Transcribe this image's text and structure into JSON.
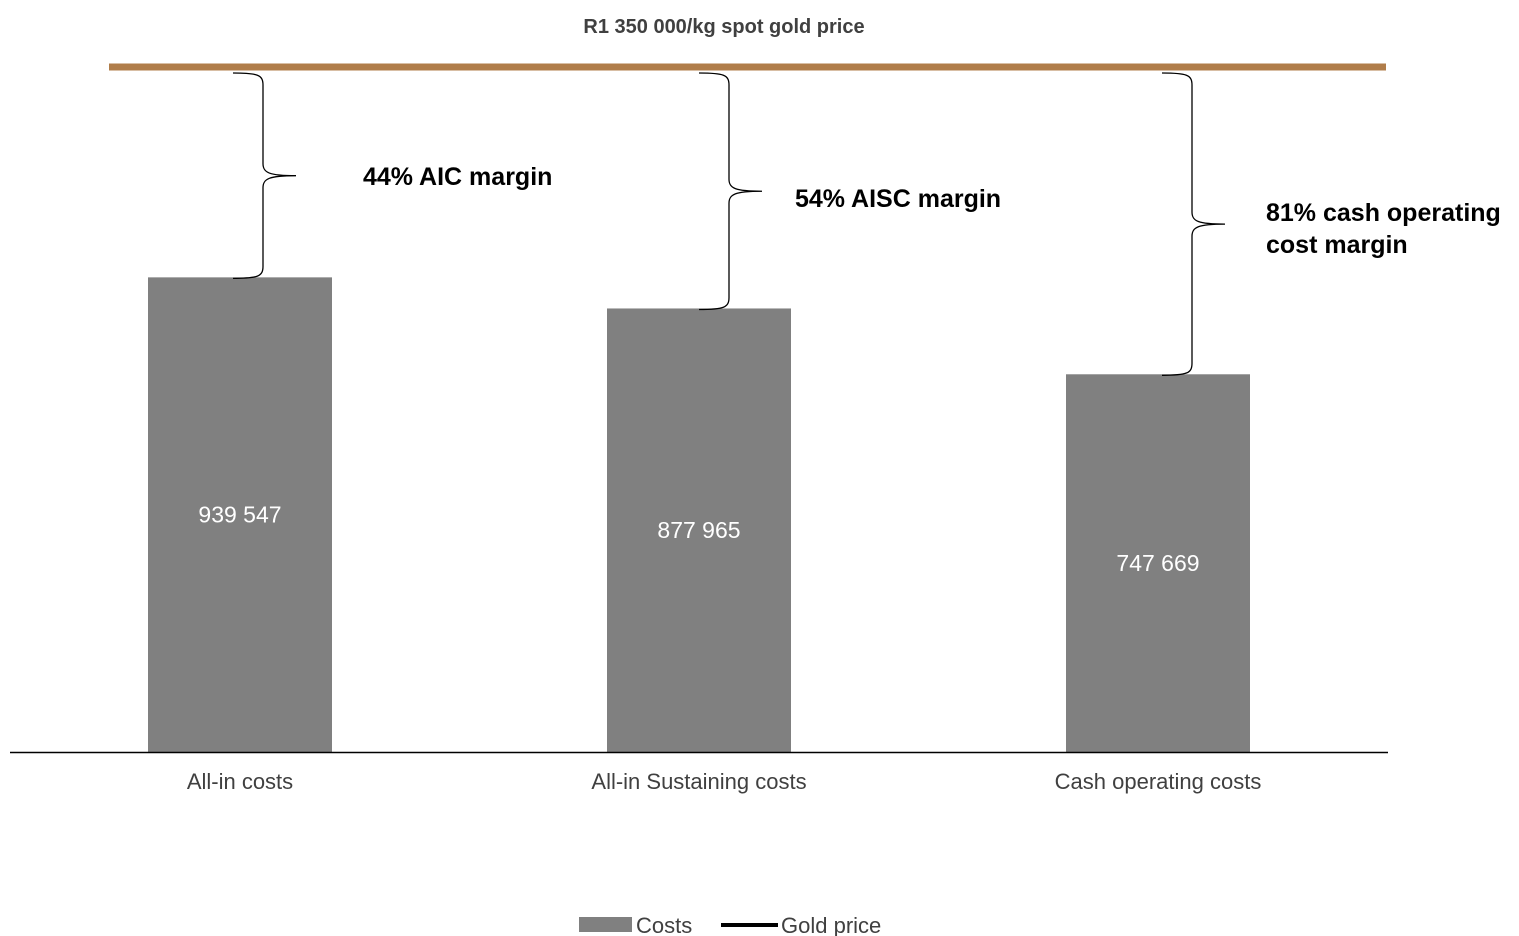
{
  "chart_data": {
    "type": "bar",
    "title": "R1 350 000/kg spot gold price",
    "categories": [
      "All-in costs",
      "All-in Sustaining costs",
      "Cash operating costs"
    ],
    "series": [
      {
        "name": "Costs",
        "values": [
          939547,
          877965,
          747669
        ],
        "labels": [
          "939 547",
          "877 965",
          "747 669"
        ]
      },
      {
        "name": "Gold price",
        "value": 1350000
      }
    ],
    "margin_annotations": [
      {
        "lines": [
          "44% AIC margin"
        ]
      },
      {
        "lines": [
          "54% AISC margin"
        ]
      },
      {
        "lines": [
          "81% cash operating",
          "cost margin"
        ]
      }
    ],
    "ylim": [
      0,
      1350000
    ],
    "grid": false,
    "legend": "bottom",
    "colors": {
      "bar": "#808080",
      "gold_line": "#B07D4A",
      "legend_line": "#000000",
      "axis": "#000000"
    }
  }
}
